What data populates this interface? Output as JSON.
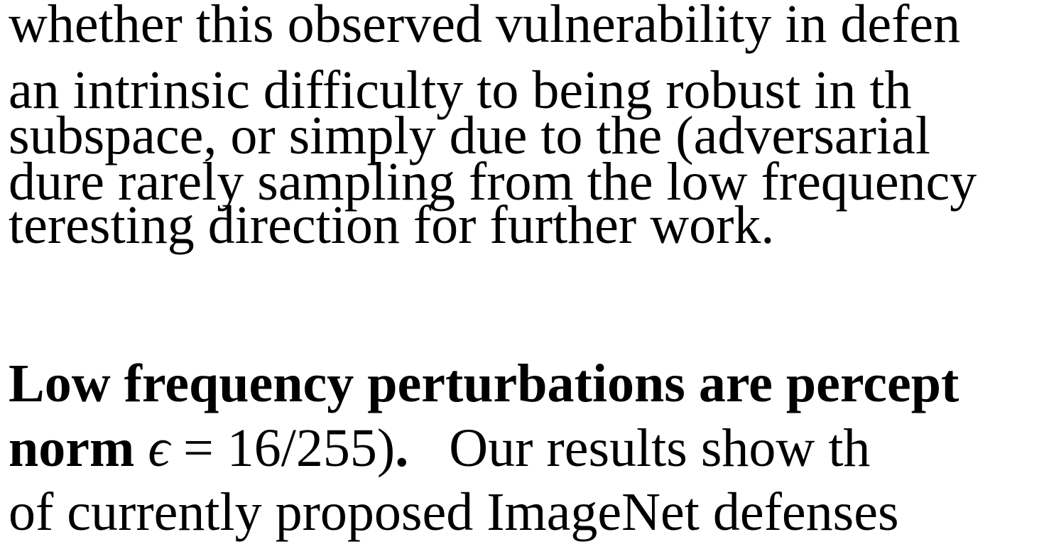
{
  "paragraph1": {
    "lines": [
      "whether this observed vulnerability in defen",
      "an intrinsic difficulty to being robust in th",
      "subspace, or simply due to the (adversarial",
      "dure rarely sampling from the low frequency",
      "teresting direction for further work."
    ]
  },
  "paragraph2": {
    "heading_line1": "Low frequency perturbations are percept",
    "heading_line2": {
      "bold": "norm",
      "math_symbol": "ϵ",
      "math_rest": " = 16/255)",
      "bold_end": ".",
      "text": "Our results show th"
    },
    "lines": [
      "of currently proposed ImageNet defenses"
    ]
  }
}
